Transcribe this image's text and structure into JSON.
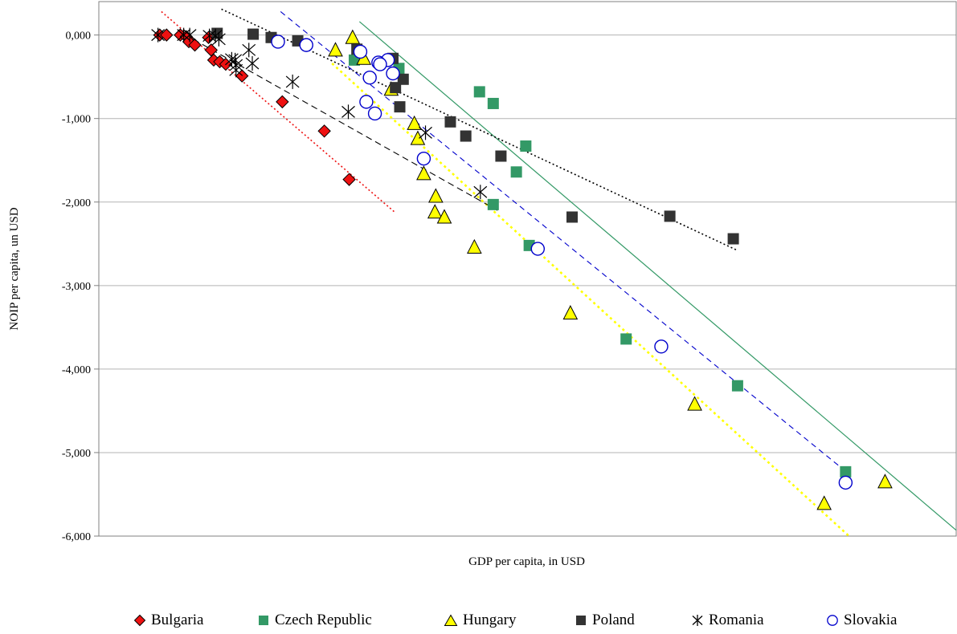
{
  "chart_data": {
    "type": "scatter",
    "title": "",
    "xlabel": "GDP per capita, in USD",
    "ylabel": "NOIP per capita, un USD",
    "xlim": [
      0,
      100
    ],
    "ylim": [
      -6000,
      400
    ],
    "yticks": [
      0,
      -1000,
      -2000,
      -3000,
      -4000,
      -5000,
      -6000
    ],
    "ytick_labels": [
      "0,000",
      "-1,000",
      "-2,000",
      "-3,000",
      "-4,000",
      "-5,000",
      "-6,000"
    ],
    "grid": "horizontal",
    "legend_position": "bottom",
    "colors": {
      "bulgaria": "#ee1111",
      "czech": "#339966",
      "hungary": "#ffff00",
      "poland": "#333333",
      "romania": "#000000",
      "slovakia": "#0000cc",
      "grid": "#b3b3b3"
    },
    "series": [
      {
        "name": "Bulgaria",
        "marker": "diamond",
        "points": [
          [
            7.1,
            0
          ],
          [
            7.9,
            0
          ],
          [
            9.5,
            0
          ],
          [
            10.2,
            -20
          ],
          [
            10.5,
            -80
          ],
          [
            11.2,
            -120
          ],
          [
            12.8,
            -30
          ],
          [
            13.1,
            -180
          ],
          [
            13.4,
            -300
          ],
          [
            14.1,
            -320
          ],
          [
            14.8,
            -350
          ],
          [
            16.7,
            -490
          ],
          [
            21.4,
            -800
          ],
          [
            26.3,
            -1150
          ],
          [
            29.2,
            -1730
          ]
        ],
        "trend": [
          [
            7.3,
            280
          ],
          [
            34.5,
            -2120
          ]
        ]
      },
      {
        "name": "Czech Republic",
        "marker": "square",
        "points": [
          [
            29.8,
            -300
          ],
          [
            35.0,
            -400
          ],
          [
            44.4,
            -680
          ],
          [
            46.0,
            -820
          ],
          [
            49.8,
            -1330
          ],
          [
            48.7,
            -1640
          ],
          [
            46.0,
            -2030
          ],
          [
            50.2,
            -2520
          ],
          [
            61.5,
            -3640
          ],
          [
            74.5,
            -4200
          ],
          [
            87.1,
            -5230
          ]
        ],
        "trend": [
          [
            30.4,
            160
          ],
          [
            100,
            -5930
          ]
        ]
      },
      {
        "name": "Hungary",
        "marker": "triangle",
        "points": [
          [
            29.6,
            -30
          ],
          [
            27.6,
            -180
          ],
          [
            30.9,
            -280
          ],
          [
            34.1,
            -650
          ],
          [
            36.8,
            -1060
          ],
          [
            37.2,
            -1240
          ],
          [
            37.9,
            -1660
          ],
          [
            39.3,
            -1930
          ],
          [
            39.2,
            -2120
          ],
          [
            40.3,
            -2180
          ],
          [
            43.8,
            -2540
          ],
          [
            55.0,
            -3330
          ],
          [
            69.5,
            -4420
          ],
          [
            84.6,
            -5610
          ],
          [
            91.7,
            -5350
          ]
        ],
        "trend": [
          [
            27.2,
            -340
          ],
          [
            87.5,
            -6000
          ]
        ]
      },
      {
        "name": "Poland",
        "marker": "square",
        "points": [
          [
            13.8,
            20
          ],
          [
            18.0,
            10
          ],
          [
            20.1,
            -30
          ],
          [
            23.2,
            -70
          ],
          [
            30.1,
            -170
          ],
          [
            34.3,
            -280
          ],
          [
            34.6,
            -630
          ],
          [
            35.5,
            -530
          ],
          [
            35.1,
            -860
          ],
          [
            41.0,
            -1040
          ],
          [
            42.8,
            -1210
          ],
          [
            46.9,
            -1450
          ],
          [
            55.2,
            -2180
          ],
          [
            66.6,
            -2170
          ],
          [
            74.0,
            -2440
          ]
        ],
        "trend": [
          [
            14.3,
            310
          ],
          [
            74.5,
            -2580
          ]
        ]
      },
      {
        "name": "Romania",
        "marker": "star",
        "points": [
          [
            6.9,
            0
          ],
          [
            9.9,
            0
          ],
          [
            10.6,
            0
          ],
          [
            12.9,
            -10
          ],
          [
            13.6,
            -10
          ],
          [
            14.0,
            -50
          ],
          [
            15.5,
            -290
          ],
          [
            15.9,
            -300
          ],
          [
            16.0,
            -360
          ],
          [
            16.0,
            -420
          ],
          [
            17.5,
            -180
          ],
          [
            17.9,
            -340
          ],
          [
            22.6,
            -560
          ],
          [
            29.1,
            -920
          ],
          [
            38.1,
            -1170
          ],
          [
            44.5,
            -1880
          ]
        ],
        "trend": [
          [
            11.0,
            -50
          ],
          [
            46.5,
            -2100
          ]
        ]
      },
      {
        "name": "Slovakia",
        "marker": "circle",
        "points": [
          [
            20.9,
            -80
          ],
          [
            24.2,
            -120
          ],
          [
            30.5,
            -200
          ],
          [
            33.7,
            -300
          ],
          [
            32.6,
            -330
          ],
          [
            32.8,
            -350
          ],
          [
            34.3,
            -460
          ],
          [
            31.6,
            -510
          ],
          [
            31.2,
            -800
          ],
          [
            32.2,
            -940
          ],
          [
            37.9,
            -1480
          ],
          [
            51.2,
            -2560
          ],
          [
            65.6,
            -3730
          ],
          [
            87.1,
            -5360
          ]
        ],
        "trend": [
          [
            21.2,
            280
          ],
          [
            87.3,
            -5240
          ]
        ]
      }
    ]
  },
  "legend": {
    "items": [
      {
        "label": "Bulgaria",
        "marker": "diamond-icon"
      },
      {
        "label": "Czech Republic",
        "marker": "square-icon"
      },
      {
        "label": "Hungary",
        "marker": "triangle-icon"
      },
      {
        "label": "Poland",
        "marker": "square-icon"
      },
      {
        "label": "Romania",
        "marker": "star-icon"
      },
      {
        "label": "Slovakia",
        "marker": "circle-icon"
      }
    ]
  }
}
